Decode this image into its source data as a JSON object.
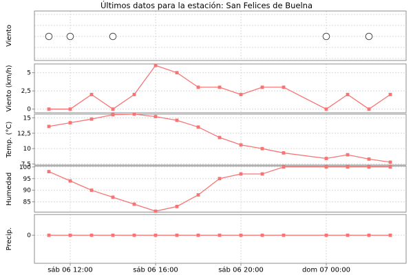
{
  "title": "Últimos datos para la estación: San Felices de Buelna",
  "colors": {
    "series": "#f87474",
    "frame": "#8c8c8c",
    "grid": "#d8d8d8",
    "calm_circle": "#4a4a4a",
    "text": "#000000"
  },
  "x_axis": {
    "hour_offsets": [
      11,
      12,
      13,
      14,
      15,
      16,
      17,
      18,
      19,
      20,
      21,
      22,
      24,
      25,
      26,
      27
    ],
    "tick_labels": [
      {
        "hour": 12,
        "label": "sáb 06 12:00"
      },
      {
        "hour": 16,
        "label": "sáb 06 16:00"
      },
      {
        "hour": 20,
        "label": "sáb 06 20:00"
      },
      {
        "hour": 24,
        "label": "dom 07 00:00"
      }
    ]
  },
  "chart_data": [
    {
      "id": "viento-dir",
      "type": "scatter",
      "ylabel": "Viento",
      "marker": "open-circle",
      "calm_hours": [
        11,
        12,
        14,
        24,
        26
      ],
      "yticks": []
    },
    {
      "id": "viento-kmh",
      "type": "line",
      "ylabel": "Viento (km/h)",
      "values": [
        0,
        0,
        2,
        0,
        2,
        6,
        5,
        3,
        3,
        2,
        3,
        3,
        0,
        2,
        0,
        2
      ],
      "ylim": [
        -0.5,
        6.2
      ],
      "yticks": [
        {
          "value": 0,
          "label": "0"
        },
        {
          "value": 2.5,
          "label": "2,5"
        },
        {
          "value": 5,
          "label": "5"
        }
      ]
    },
    {
      "id": "temp",
      "type": "line",
      "ylabel": "Temp. (°C)",
      "values": [
        13.6,
        14.2,
        14.8,
        15.5,
        15.6,
        15.2,
        14.6,
        13.5,
        11.8,
        10.6,
        10.0,
        9.3,
        8.4,
        9.0,
        8.3,
        7.8
      ],
      "ylim": [
        7.34,
        15.6
      ],
      "yticks": [
        {
          "value": 7.5,
          "label": "7,5"
        },
        {
          "value": 10,
          "label": "10"
        },
        {
          "value": 12.5,
          "label": "12,5"
        },
        {
          "value": 15,
          "label": "15"
        }
      ]
    },
    {
      "id": "humedad",
      "type": "line",
      "ylabel": "Humedad",
      "values": [
        98,
        94,
        90,
        87,
        84,
        81,
        83,
        88,
        95,
        97,
        97,
        100,
        100,
        100,
        100,
        100
      ],
      "ylim": [
        80.6,
        100.4
      ],
      "yticks": [
        {
          "value": 85,
          "label": "85"
        },
        {
          "value": 90,
          "label": "90"
        },
        {
          "value": 95,
          "label": "95"
        },
        {
          "value": 100,
          "label": "100"
        }
      ]
    },
    {
      "id": "precip",
      "type": "line",
      "ylabel": "Precip.",
      "values": [
        0,
        0,
        0,
        0,
        0,
        0,
        0,
        0,
        0,
        0,
        0,
        0,
        0,
        0,
        0,
        0
      ],
      "ylim": [
        -1.15,
        0.85
      ],
      "yticks": [
        {
          "value": 0,
          "label": "0"
        }
      ]
    }
  ]
}
